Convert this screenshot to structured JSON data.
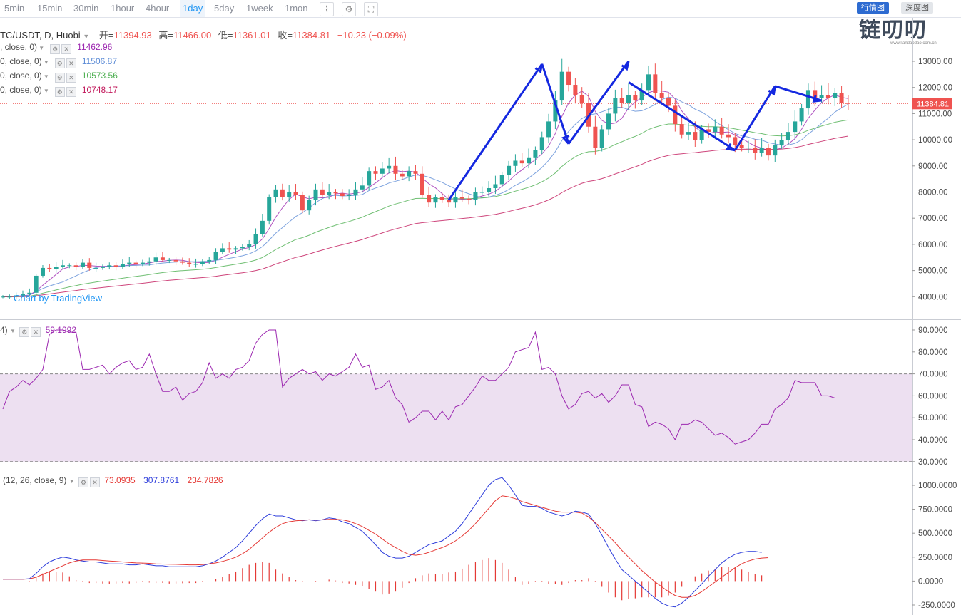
{
  "toolbar": {
    "timeframes": [
      "5min",
      "15min",
      "30min",
      "1hour",
      "4hour",
      "1day",
      "5day",
      "1week",
      "1mon"
    ],
    "active": "1day",
    "tab_a": "行情图",
    "tab_b": "深度图"
  },
  "logo": {
    "text": "链叨叨",
    "url": "www.liandaodao.com.cn"
  },
  "header": {
    "symbol": "TC/USDT, D, Huobi",
    "open_label": "开=",
    "open": "11394.93",
    "high_label": "高=",
    "high": "11466.00",
    "low_label": "低=",
    "low": "11361.01",
    "close_label": "收=",
    "close": "11384.81",
    "change": "−10.23 (−0.09%)"
  },
  "ma_legends": [
    {
      "label": ", close, 0)",
      "value": "11462.96",
      "color": "#9c27b0"
    },
    {
      "label": "0, close, 0)",
      "value": "11506.87",
      "color": "#5b8bd6"
    },
    {
      "label": "0, close, 0)",
      "value": "10573.56",
      "color": "#4caf50"
    },
    {
      "label": "0, close, 0)",
      "value": "10748.17",
      "color": "#c2185b"
    }
  ],
  "watermark": "Chart by TradingView",
  "price_tag": "11384.81",
  "price_axis": [
    "13000.00",
    "12000.00",
    "11000.00",
    "10000.00",
    "9000.00",
    "8000.00",
    "7000.00",
    "6000.00",
    "5000.00",
    "4000.00"
  ],
  "rsi": {
    "label": "4)",
    "value": "59.1992",
    "axis": [
      "90.0000",
      "80.0000",
      "70.0000",
      "60.0000",
      "50.0000",
      "40.0000",
      "30.0000"
    ]
  },
  "macd": {
    "label": "(12, 26, close, 9)",
    "v1": "73.0935",
    "v2": "307.8761",
    "v3": "234.7826",
    "axis": [
      "1000.0000",
      "750.0000",
      "500.0000",
      "250.0000",
      "0.0000",
      "-250.0000"
    ]
  },
  "colors": {
    "up": "#26a69a",
    "down": "#ef5350",
    "ma_fast": "#9c27b0",
    "ma_mid": "#5b8bd6",
    "ma_green": "#4caf50",
    "ma_slow": "#c2185b",
    "rsi_line": "#9c27b0",
    "rsi_band": "#ede0f1",
    "macd_line": "#2d3ddb",
    "signal_line": "#e53935",
    "arrows": "#1428e0"
  },
  "chart_data": [
    {
      "type": "candlestick",
      "title": "TC/USDT, D, Huobi",
      "ylim": [
        3500,
        14000
      ],
      "close_series": [
        4000,
        4000,
        4050,
        4100,
        4150,
        4800,
        5100,
        5050,
        5150,
        5200,
        5200,
        5150,
        5300,
        5100,
        5100,
        5150,
        5200,
        5150,
        5250,
        5300,
        5250,
        5300,
        5350,
        5500,
        5400,
        5400,
        5350,
        5300,
        5250,
        5250,
        5350,
        5400,
        5700,
        5850,
        5800,
        5850,
        5900,
        6000,
        6400,
        6900,
        7800,
        8100,
        7800,
        8000,
        7900,
        7300,
        7700,
        8100,
        7900,
        8000,
        7950,
        7850,
        7900,
        8100,
        8250,
        8800,
        8700,
        8900,
        9000,
        8700,
        8600,
        8800,
        8700,
        7900,
        7600,
        7800,
        7700,
        7600,
        7800,
        7750,
        7700,
        8000,
        8000,
        8150,
        8300,
        8650,
        9000,
        9200,
        9100,
        9300,
        9600,
        10100,
        10700,
        11500,
        12600,
        12100,
        11700,
        11400,
        10500,
        9700,
        10400,
        11000,
        11600,
        11400,
        11700,
        11500,
        11900,
        12500,
        11800,
        11600,
        11300,
        10600,
        10200,
        10300,
        10000,
        10400,
        10300,
        10500,
        10200,
        10100,
        9800,
        9700,
        9700,
        9500,
        9700,
        9400,
        9800,
        10000,
        10300,
        10700,
        11200,
        11900,
        11600,
        11700,
        11600,
        11800,
        11400,
        11384
      ]
    },
    {
      "type": "line",
      "title": "RSI",
      "ylim": [
        28,
        92
      ],
      "reference_lines": [
        70,
        30
      ],
      "values": [
        54,
        62,
        64,
        67,
        65,
        68,
        72,
        88,
        90,
        90,
        89,
        89,
        72,
        72,
        73,
        74,
        70,
        73,
        75,
        76,
        72,
        73,
        79,
        70,
        62,
        62,
        64,
        58,
        61,
        62,
        66,
        75,
        68,
        70,
        68,
        72,
        73,
        76,
        84,
        88,
        90,
        90,
        64,
        68,
        70,
        72,
        70,
        71,
        67,
        70,
        69,
        71,
        73,
        79,
        73,
        74,
        63,
        64,
        67,
        59,
        56,
        48,
        50,
        53,
        53,
        49,
        53,
        49,
        55,
        56,
        60,
        64,
        69,
        67,
        67,
        70,
        73,
        80,
        81,
        82,
        89,
        72,
        73,
        70,
        60,
        54,
        56,
        61,
        62,
        59,
        61,
        57,
        60,
        65,
        65,
        56,
        55,
        46,
        48,
        47,
        45,
        40,
        47,
        47,
        49,
        48,
        45,
        42,
        43,
        41,
        38,
        39,
        40,
        43,
        47,
        47,
        54,
        56,
        59,
        67,
        66,
        66,
        66,
        60,
        60,
        59
      ]
    },
    {
      "type": "line",
      "title": "MACD",
      "ylim": [
        -300,
        1100
      ],
      "series": [
        {
          "name": "MACD",
          "values": [
            20,
            20,
            20,
            20,
            25,
            80,
            150,
            200,
            230,
            250,
            240,
            220,
            210,
            200,
            200,
            190,
            180,
            180,
            180,
            170,
            170,
            180,
            170,
            160,
            160,
            150,
            150,
            150,
            150,
            150,
            160,
            180,
            210,
            250,
            300,
            350,
            420,
            500,
            580,
            650,
            700,
            680,
            680,
            660,
            640,
            630,
            640,
            630,
            640,
            660,
            650,
            620,
            600,
            560,
            520,
            450,
            380,
            300,
            260,
            240,
            240,
            260,
            300,
            340,
            380,
            400,
            420,
            470,
            520,
            600,
            700,
            800,
            900,
            1000,
            1060,
            1080,
            1000,
            900,
            790,
            780,
            780,
            760,
            720,
            700,
            680,
            700,
            730,
            720,
            700,
            600,
            480,
            350,
            230,
            120,
            60,
            0,
            -60,
            -120,
            -180,
            -230,
            -260,
            -270,
            -230,
            -170,
            -100,
            -30,
            50,
            120,
            190,
            240,
            280,
            300,
            310,
            310,
            300
          ]
        },
        {
          "name": "Signal",
          "values": [
            20,
            20,
            20,
            20,
            22,
            40,
            70,
            100,
            130,
            160,
            190,
            210,
            220,
            220,
            220,
            215,
            210,
            205,
            200,
            195,
            190,
            188,
            185,
            180,
            178,
            176,
            175,
            172,
            170,
            170,
            172,
            180,
            190,
            205,
            225,
            250,
            285,
            330,
            390,
            450,
            510,
            560,
            600,
            620,
            630,
            635,
            640,
            638,
            640,
            645,
            645,
            640,
            625,
            600,
            570,
            530,
            490,
            440,
            390,
            350,
            310,
            280,
            270,
            280,
            300,
            325,
            350,
            380,
            420,
            470,
            530,
            600,
            680,
            760,
            840,
            890,
            880,
            860,
            830,
            810,
            790,
            770,
            750,
            730,
            720,
            720,
            720,
            710,
            670,
            610,
            540,
            470,
            400,
            320,
            250,
            180,
            110,
            50,
            -10,
            -60,
            -110,
            -150,
            -170,
            -170,
            -150,
            -110,
            -60,
            -10,
            40,
            90,
            140,
            180,
            210,
            230,
            240,
            245
          ]
        },
        {
          "name": "Histogram",
          "values": [
            0,
            0,
            0,
            0,
            3,
            40,
            80,
            100,
            100,
            90,
            50,
            10,
            -10,
            -20,
            -20,
            -25,
            -30,
            -25,
            -20,
            -25,
            -20,
            -8,
            -15,
            -20,
            -18,
            -26,
            -25,
            -22,
            -20,
            -20,
            -12,
            0,
            20,
            45,
            75,
            100,
            135,
            170,
            190,
            200,
            190,
            120,
            80,
            40,
            10,
            -5,
            0,
            -8,
            0,
            15,
            5,
            -20,
            -25,
            -40,
            -50,
            -80,
            -110,
            -140,
            -130,
            -110,
            -70,
            -20,
            30,
            60,
            80,
            75,
            70,
            90,
            100,
            130,
            170,
            200,
            220,
            240,
            220,
            190,
            120,
            40,
            -40,
            -30,
            -10,
            -10,
            -30,
            -30,
            -40,
            -20,
            10,
            10,
            30,
            -10,
            -60,
            -120,
            -170,
            -200,
            -190,
            -180,
            -170,
            -170,
            -170,
            -170,
            -150,
            -120,
            -60,
            0,
            50,
            80,
            110,
            130,
            150,
            150,
            140,
            120,
            100,
            70,
            60
          ]
        }
      ]
    }
  ]
}
